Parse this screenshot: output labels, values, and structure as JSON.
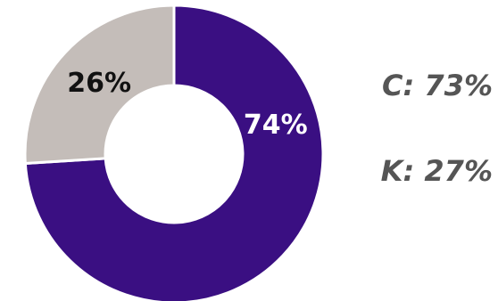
{
  "chart_data": {
    "type": "pie",
    "style": "donut",
    "slices": [
      {
        "label": "74%",
        "value": 74,
        "color": "#3a0f82"
      },
      {
        "label": "26%",
        "value": 26,
        "color": "#c4bdb9"
      }
    ],
    "slice_label_colors": [
      "#ffffff",
      "#111111"
    ],
    "annotations": [
      "C: 73%",
      "K: 27%"
    ],
    "annotation_color": "#555555"
  }
}
